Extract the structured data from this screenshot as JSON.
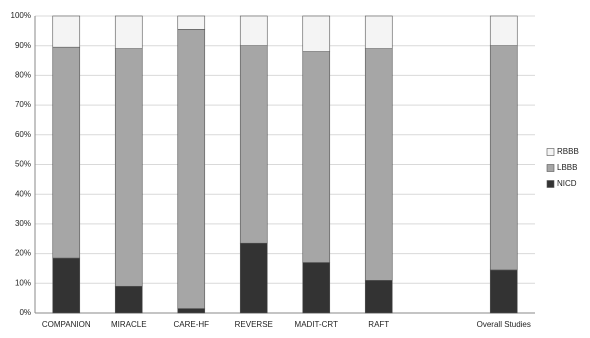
{
  "chart_data": {
    "type": "stacked_bar",
    "categories": [
      "COMPANION",
      "MIRACLE",
      "CARE-HF",
      "REVERSE",
      "MADIT-CRT",
      "RAFT",
      null,
      "Overall Studies"
    ],
    "series": [
      {
        "name": "NICD",
        "color": "#333333",
        "values": [
          18.5,
          9,
          1.5,
          23.5,
          17,
          11,
          null,
          14.5
        ]
      },
      {
        "name": "LBBB",
        "color": "#a6a6a6",
        "values": [
          71,
          80,
          94,
          66.5,
          71,
          78,
          null,
          75.5
        ]
      },
      {
        "name": "RBBB",
        "color": "#f4f4f4",
        "values": [
          10.5,
          11,
          4.5,
          10,
          12,
          11,
          null,
          10
        ]
      }
    ],
    "ylim": [
      0,
      100
    ],
    "yticks": [
      {
        "value": 0,
        "label": "0%"
      },
      {
        "value": 10,
        "label": "10%"
      },
      {
        "value": 20,
        "label": "20%"
      },
      {
        "value": 30,
        "label": "30%"
      },
      {
        "value": 40,
        "label": "40%"
      },
      {
        "value": 50,
        "label": "50%"
      },
      {
        "value": 60,
        "label": "60%"
      },
      {
        "value": 70,
        "label": "70%"
      },
      {
        "value": 80,
        "label": "80%"
      },
      {
        "value": 90,
        "label": "90%"
      },
      {
        "value": 100,
        "label": "100%"
      }
    ],
    "grid": true,
    "legend": "right"
  }
}
